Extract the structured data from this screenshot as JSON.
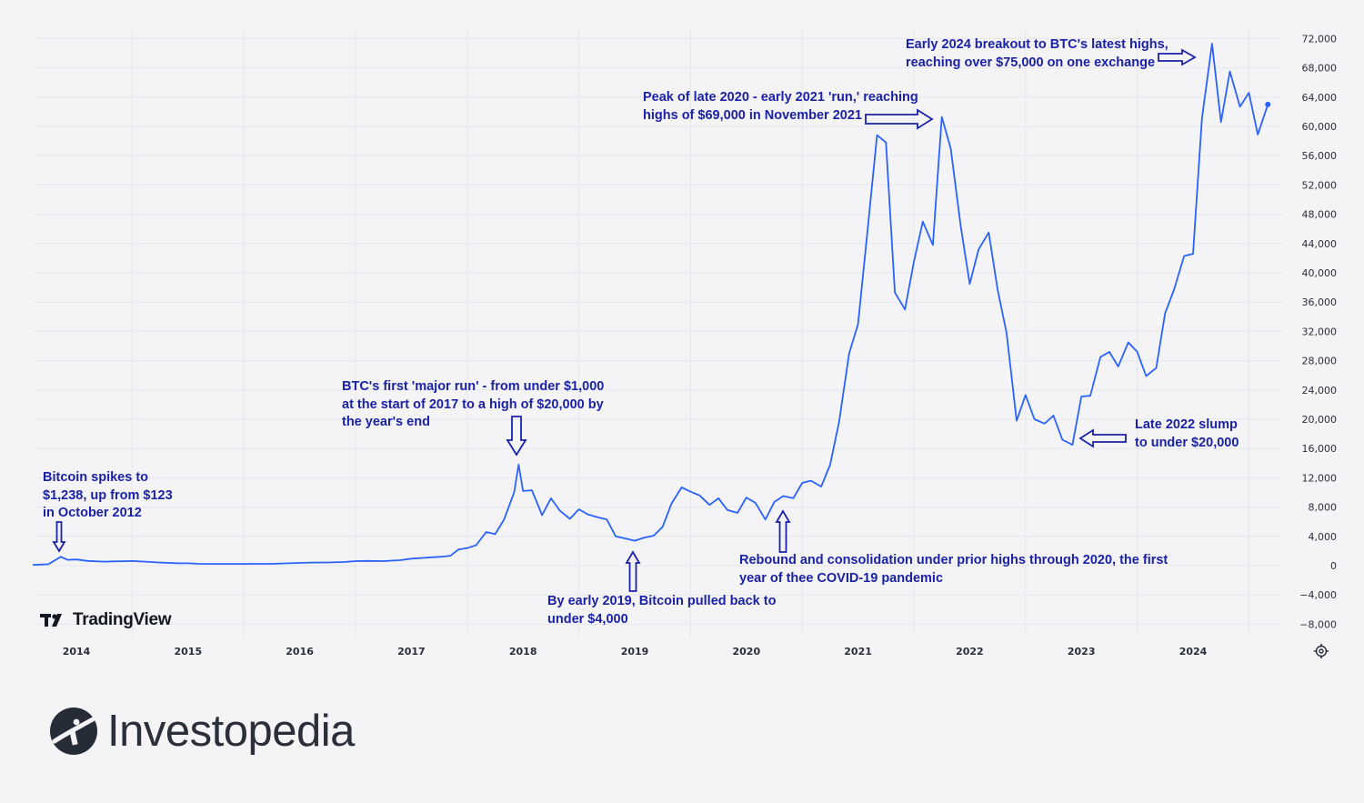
{
  "chart_data": {
    "type": "line",
    "title": "",
    "xlabel": "",
    "ylabel": "",
    "ylim": [
      -10000,
      73500
    ],
    "xlim": [
      2013.61,
      2024.97
    ],
    "grid": true,
    "color": "#2962ff",
    "x_tick_labels": [
      "2014",
      "2015",
      "2016",
      "2017",
      "2018",
      "2019",
      "2020",
      "2021",
      "2022",
      "2023",
      "2024"
    ],
    "x_tick_values": [
      2014,
      2015,
      2016,
      2017,
      2018,
      2019,
      2020,
      2021,
      2022,
      2023,
      2024
    ],
    "y_tick_labels": [
      "72,000",
      "68,000",
      "64,000",
      "60,000",
      "56,000",
      "52,000",
      "48,000",
      "44,000",
      "40,000",
      "36,000",
      "32,000",
      "28,000",
      "24,000",
      "20,000",
      "16,000",
      "12,000",
      "8,000",
      "4,000",
      "0",
      "−4,000",
      "−8,000"
    ],
    "y_tick_values": [
      72000,
      68000,
      64000,
      60000,
      56000,
      52000,
      48000,
      44000,
      40000,
      36000,
      32000,
      28000,
      24000,
      20000,
      16000,
      12000,
      8000,
      4000,
      0,
      -4000,
      -8000
    ],
    "series": [
      {
        "name": "",
        "points": [
          [
            2013.61,
            100
          ],
          [
            2013.75,
            200
          ],
          [
            2013.86,
            1200
          ],
          [
            2013.92,
            800
          ],
          [
            2014.0,
            850
          ],
          [
            2014.1,
            650
          ],
          [
            2014.25,
            550
          ],
          [
            2014.33,
            580
          ],
          [
            2014.42,
            600
          ],
          [
            2014.5,
            630
          ],
          [
            2014.6,
            560
          ],
          [
            2014.75,
            420
          ],
          [
            2014.9,
            330
          ],
          [
            2015.0,
            320
          ],
          [
            2015.1,
            250
          ],
          [
            2015.25,
            240
          ],
          [
            2015.4,
            230
          ],
          [
            2015.5,
            240
          ],
          [
            2015.6,
            250
          ],
          [
            2015.75,
            250
          ],
          [
            2015.9,
            320
          ],
          [
            2016.0,
            370
          ],
          [
            2016.1,
            420
          ],
          [
            2016.25,
            430
          ],
          [
            2016.4,
            500
          ],
          [
            2016.5,
            620
          ],
          [
            2016.6,
            650
          ],
          [
            2016.75,
            620
          ],
          [
            2016.9,
            750
          ],
          [
            2017.0,
            960
          ],
          [
            2017.1,
            1050
          ],
          [
            2017.2,
            1150
          ],
          [
            2017.3,
            1250
          ],
          [
            2017.35,
            1350
          ],
          [
            2017.42,
            2200
          ],
          [
            2017.5,
            2400
          ],
          [
            2017.58,
            2800
          ],
          [
            2017.67,
            4600
          ],
          [
            2017.75,
            4300
          ],
          [
            2017.83,
            6300
          ],
          [
            2017.92,
            10000
          ],
          [
            2017.96,
            13800
          ],
          [
            2018.0,
            10200
          ],
          [
            2018.08,
            10300
          ],
          [
            2018.17,
            6900
          ],
          [
            2018.25,
            9200
          ],
          [
            2018.33,
            7500
          ],
          [
            2018.42,
            6400
          ],
          [
            2018.5,
            7700
          ],
          [
            2018.58,
            7000
          ],
          [
            2018.67,
            6600
          ],
          [
            2018.75,
            6300
          ],
          [
            2018.83,
            4000
          ],
          [
            2018.92,
            3700
          ],
          [
            2019.0,
            3400
          ],
          [
            2019.08,
            3800
          ],
          [
            2019.17,
            4100
          ],
          [
            2019.25,
            5300
          ],
          [
            2019.33,
            8500
          ],
          [
            2019.42,
            10700
          ],
          [
            2019.5,
            10100
          ],
          [
            2019.58,
            9600
          ],
          [
            2019.67,
            8300
          ],
          [
            2019.75,
            9200
          ],
          [
            2019.83,
            7600
          ],
          [
            2019.92,
            7200
          ],
          [
            2020.0,
            9300
          ],
          [
            2020.08,
            8600
          ],
          [
            2020.17,
            6300
          ],
          [
            2020.25,
            8700
          ],
          [
            2020.33,
            9500
          ],
          [
            2020.42,
            9200
          ],
          [
            2020.5,
            11300
          ],
          [
            2020.58,
            11600
          ],
          [
            2020.67,
            10800
          ],
          [
            2020.75,
            13800
          ],
          [
            2020.83,
            19600
          ],
          [
            2020.92,
            29000
          ],
          [
            2021.0,
            33000
          ],
          [
            2021.08,
            45000
          ],
          [
            2021.17,
            58800
          ],
          [
            2021.25,
            57800
          ],
          [
            2021.33,
            37300
          ],
          [
            2021.42,
            35000
          ],
          [
            2021.5,
            41500
          ],
          [
            2021.58,
            47000
          ],
          [
            2021.67,
            43800
          ],
          [
            2021.75,
            61300
          ],
          [
            2021.83,
            57000
          ],
          [
            2021.92,
            46300
          ],
          [
            2022.0,
            38500
          ],
          [
            2022.08,
            43200
          ],
          [
            2022.17,
            45500
          ],
          [
            2022.25,
            37700
          ],
          [
            2022.33,
            31800
          ],
          [
            2022.42,
            19800
          ],
          [
            2022.5,
            23300
          ],
          [
            2022.58,
            20000
          ],
          [
            2022.67,
            19400
          ],
          [
            2022.75,
            20500
          ],
          [
            2022.83,
            17200
          ],
          [
            2022.92,
            16500
          ],
          [
            2023.0,
            23100
          ],
          [
            2023.08,
            23200
          ],
          [
            2023.17,
            28500
          ],
          [
            2023.25,
            29200
          ],
          [
            2023.33,
            27200
          ],
          [
            2023.42,
            30500
          ],
          [
            2023.5,
            29200
          ],
          [
            2023.58,
            25900
          ],
          [
            2023.67,
            27000
          ],
          [
            2023.75,
            34500
          ],
          [
            2023.83,
            37700
          ],
          [
            2023.92,
            42300
          ],
          [
            2024.0,
            42600
          ],
          [
            2024.08,
            61100
          ],
          [
            2024.17,
            71300
          ],
          [
            2024.25,
            60600
          ],
          [
            2024.33,
            67500
          ],
          [
            2024.42,
            62700
          ],
          [
            2024.5,
            64600
          ],
          [
            2024.58,
            58900
          ],
          [
            2024.67,
            63000
          ]
        ]
      }
    ],
    "annotations": [
      {
        "text": "Bitcoin spikes to\n$1,238, up from $123\nin October 2012"
      },
      {
        "text": "BTC's first 'major run' - from under $1,000\nat the start of 2017 to a high of $20,000 by\nthe year's end"
      },
      {
        "text": "By early 2019, Bitcoin pulled back to\nunder $4,000"
      },
      {
        "text": "Rebound and consolidation under prior highs through 2020, the first\nyear of thee COVID-19 pandemic"
      },
      {
        "text": "Peak of late 2020 - early 2021 'run,' reaching\nhighs of $69,000 in November 2021"
      },
      {
        "text": "Early 2024 breakout to BTC's latest highs,\nreaching over $75,000 on one exchange"
      },
      {
        "text": "Late 2022 slump\nto under $20,000"
      }
    ]
  },
  "branding": {
    "tradingview": "TradingView",
    "investopedia": "Investopedia"
  },
  "icons": {
    "settings": "settings-gear-icon"
  }
}
